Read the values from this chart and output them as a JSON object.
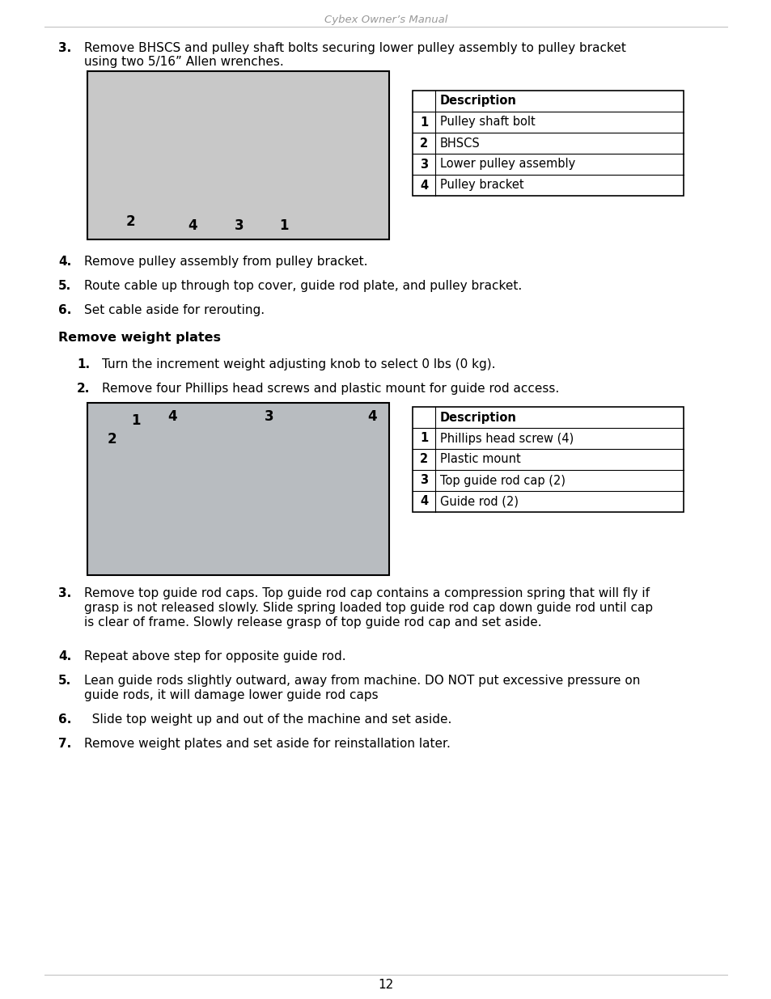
{
  "header": "Cybex Owner’s Manual",
  "bg_color": "#ffffff",
  "text_color": "#000000",
  "header_color": "#999999",
  "page_number": "12",
  "section3_label": "3.",
  "section3_text": "Remove BHSCS and pulley shaft bolts securing lower pulley assembly to pulley bracket\nusing two 5/16” Allen wrenches.",
  "table1_header": "Description",
  "table1_rows": [
    [
      "1",
      "Pulley shaft bolt"
    ],
    [
      "2",
      "BHSCS"
    ],
    [
      "3",
      "Lower pulley assembly"
    ],
    [
      "4",
      "Pulley bracket"
    ]
  ],
  "step4_label": "4.",
  "step4_text": "Remove pulley assembly from pulley bracket.",
  "step5_label": "5.",
  "step5_text": "Route cable up through top cover, guide rod plate, and pulley bracket.",
  "step6_label": "6.",
  "step6_text": "Set cable aside for rerouting.",
  "section_title": "Remove weight plates",
  "rwp_step1_label": "1.",
  "rwp_step1": "Turn the increment weight adjusting knob to select 0 lbs (0 kg).",
  "rwp_step2_label": "2.",
  "rwp_step2": "Remove four Phillips head screws and plastic mount for guide rod access.",
  "table2_header": "Description",
  "table2_rows": [
    [
      "1",
      "Phillips head screw (4)"
    ],
    [
      "2",
      "Plastic mount"
    ],
    [
      "3",
      "Top guide rod cap (2)"
    ],
    [
      "4",
      "Guide rod (2)"
    ]
  ],
  "rwp_step3_label": "3.",
  "rwp_step3_line1": "Remove top guide rod caps. Top guide rod cap contains a compression spring that will fly if",
  "rwp_step3_line2": "grasp is not released slowly. Slide spring loaded top guide rod cap down guide rod until cap",
  "rwp_step3_line3": "is clear of frame. Slowly release grasp of top guide rod cap and set aside.",
  "rwp_step4_label": "4.",
  "rwp_step4": "Repeat above step for opposite guide rod.",
  "rwp_step5_label": "5.",
  "rwp_step5_line1": "Lean guide rods slightly outward, away from machine. DO NOT put excessive pressure on",
  "rwp_step5_line2": "guide rods, it will damage lower guide rod caps",
  "rwp_step6_label": "6.",
  "rwp_step6": "  Slide top weight up and out of the machine and set aside.",
  "rwp_step7_label": "7.",
  "rwp_step7": "Remove weight plates and set aside for reinstallation later.",
  "img1_color": "#c8c8c8",
  "img1_border": "#000000",
  "img2_color": "#b8bcc0",
  "img2_border": "#000000"
}
